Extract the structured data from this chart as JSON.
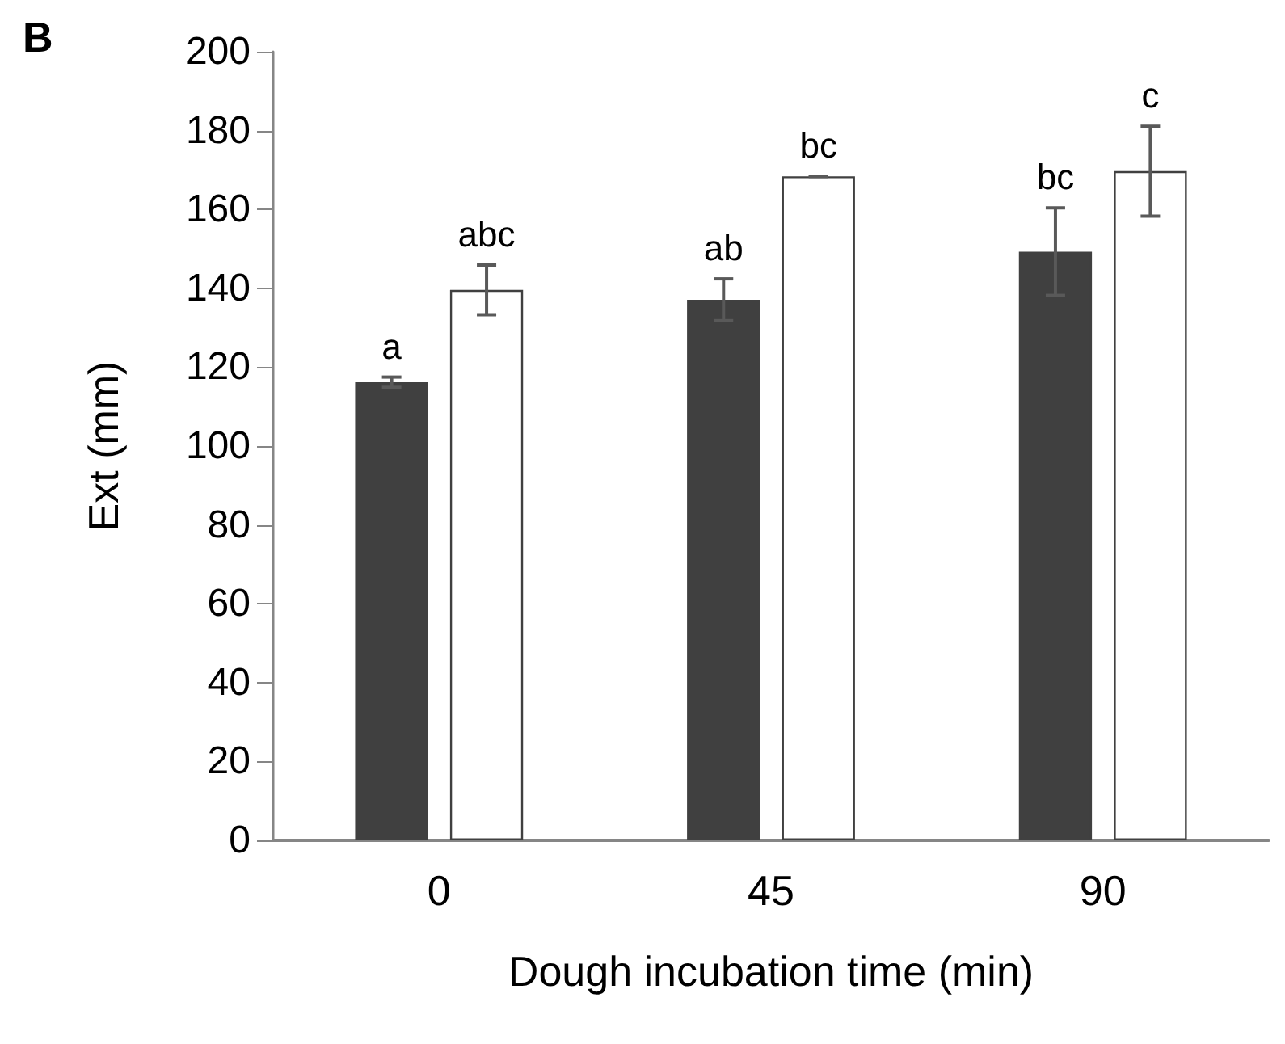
{
  "chart_data": {
    "type": "bar",
    "xlabel": "Dough incubation time (min)",
    "ylabel": "Ext (mm)",
    "annotations": [
      "B"
    ],
    "categories": [
      "0",
      "45",
      "90"
    ],
    "series": [
      {
        "color": "#404040",
        "values": [
          116.2,
          137.1,
          149.3
        ],
        "errors": [
          1.3,
          5.3,
          11.1
        ],
        "value_labels": [
          "a",
          "ab",
          "bc"
        ]
      },
      {
        "color": "#ffffff",
        "values": [
          139.6,
          168.4,
          169.7
        ],
        "errors": [
          6.3,
          0,
          11.4
        ],
        "value_labels": [
          "abc",
          "bc",
          "c"
        ]
      }
    ],
    "ylim": [
      0,
      200
    ],
    "yticks": [
      0,
      20,
      40,
      60,
      80,
      100,
      120,
      140,
      160,
      180,
      200
    ],
    "grid": false
  }
}
